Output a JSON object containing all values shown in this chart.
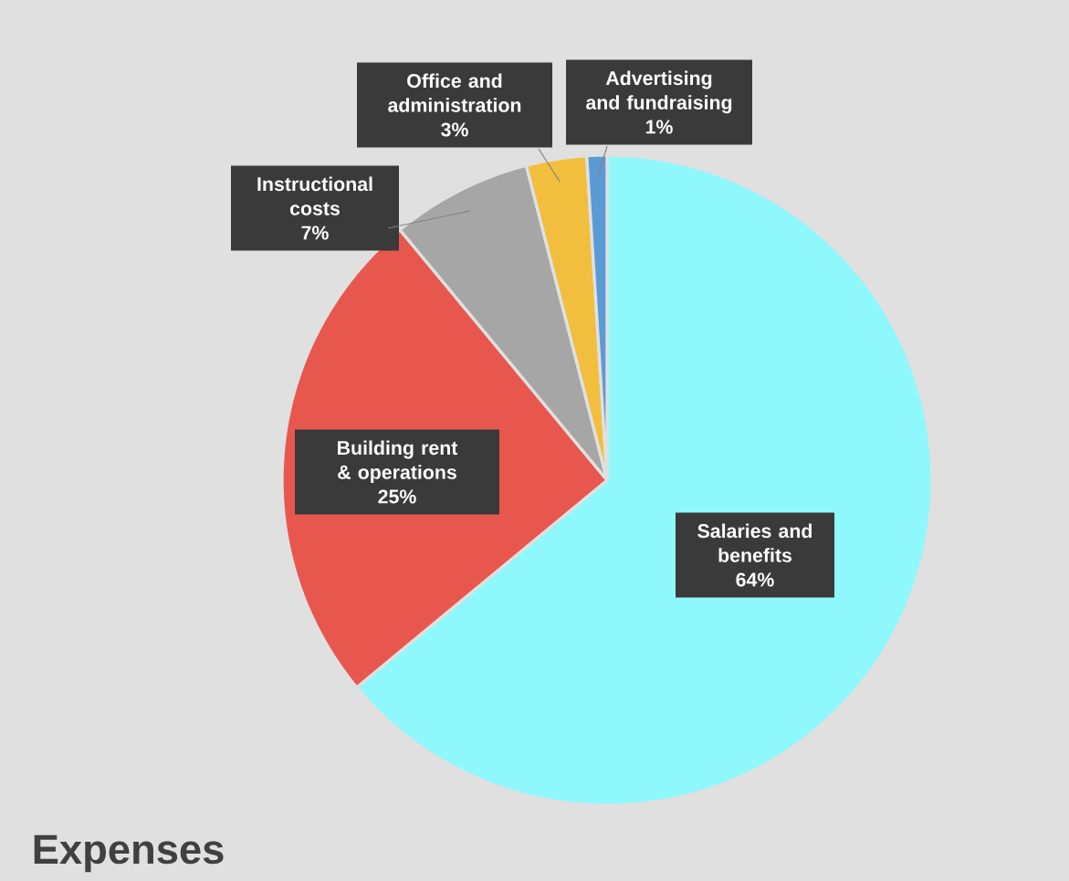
{
  "chart_data": {
    "type": "pie",
    "title": "Expenses",
    "categories": [
      "Salaries and benefits",
      "Building rent & operations",
      "Instructional costs",
      "Office and administration",
      "Advertising and fundraising"
    ],
    "values": [
      64,
      25,
      7,
      3,
      1
    ],
    "colors": [
      "#8ef8fc",
      "#e8574e",
      "#a6a6a6",
      "#f2be3e",
      "#5b9bd5"
    ],
    "value_labels": [
      "64%",
      "25%",
      "7%",
      "3%",
      "1%"
    ]
  }
}
